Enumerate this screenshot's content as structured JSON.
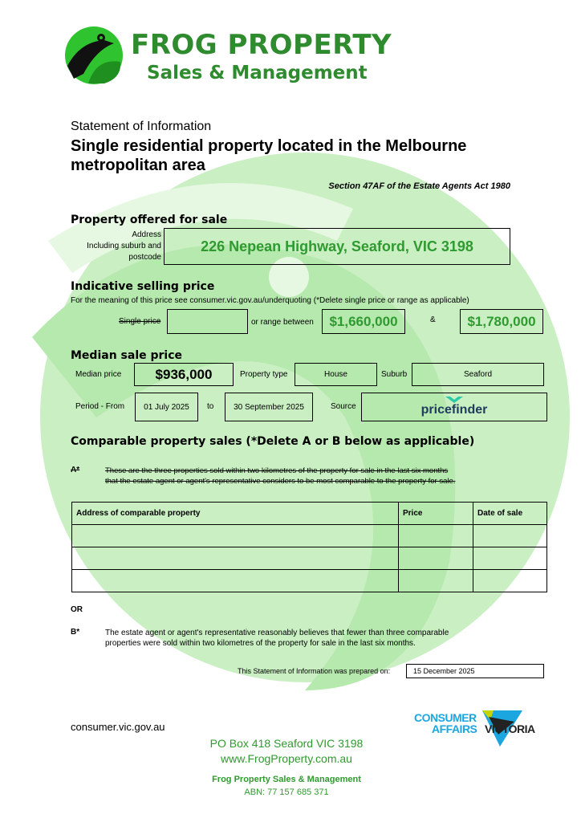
{
  "header": {
    "brand": "FROG PROPERTY",
    "tagline": "Sales & Management"
  },
  "doc": {
    "kicker": "Statement of Information",
    "title_line1": "Single residential property located in the Melbourne",
    "title_line2": "metropolitan area",
    "act": "Section 47AF of the Estate Agents Act 1980"
  },
  "property": {
    "heading": "Property offered for sale",
    "label1": "Address",
    "label2": "Including suburb and",
    "label3": "postcode",
    "address": "226 Nepean Highway, Seaford, VIC 3198"
  },
  "indicative": {
    "heading": "Indicative selling price",
    "note": "For the meaning of this price see consumer.vic.gov.au/underquoting (*Delete single price or range as applicable)",
    "single_label": "Single price",
    "single_value": "",
    "range_label": "or range between",
    "low": "$1,660,000",
    "and": "&",
    "high": "$1,780,000"
  },
  "median": {
    "heading": "Median sale price",
    "price_label": "Median price",
    "price": "$936,000",
    "type_label": "Property type",
    "type": "House",
    "suburb_label": "Suburb",
    "suburb": "Seaford",
    "period_label": "Period - From",
    "from": "01 July 2025",
    "to_label": "to",
    "to": "30 September 2025",
    "source_label": "Source",
    "source": "pricefinder"
  },
  "comparable": {
    "heading": "Comparable property sales (*Delete A or B below as applicable)",
    "a_marker": "A*",
    "a_line1": "These are the three properties sold within two kilometres of the property for sale in the last six months",
    "a_line2": "that the estate agent or agent's representative considers to be most comparable to the property for sale.",
    "columns": [
      "Address of comparable property",
      "Price",
      "Date of sale"
    ],
    "rows": [
      [
        "",
        "",
        ""
      ],
      [
        "",
        "",
        ""
      ],
      [
        "",
        "",
        ""
      ]
    ],
    "or": "OR",
    "b_marker": "B*",
    "b_line1": "The estate agent or agent's representative reasonably believes that fewer than three comparable",
    "b_line2": "properties were sold within two kilometres of the property for sale in the last six months."
  },
  "prepared": {
    "label": "This Statement of Information was prepared on:",
    "date": "15 December 2025"
  },
  "footer": {
    "site": "consumer.vic.gov.au",
    "cav_line1": "CONSUMER",
    "cav_line2": "AFFAIRS",
    "cav_line3": "VICTORIA",
    "po": "PO Box 418 Seaford VIC 3198",
    "web": "www.FrogProperty.com.au",
    "company": "Frog Property Sales & Management",
    "abn": "ABN: 77 157 685 371"
  },
  "colors": {
    "brand_green": "#2e8b2e",
    "watermark": "#c9efc3",
    "cav_blue": "#1ba6e0"
  }
}
